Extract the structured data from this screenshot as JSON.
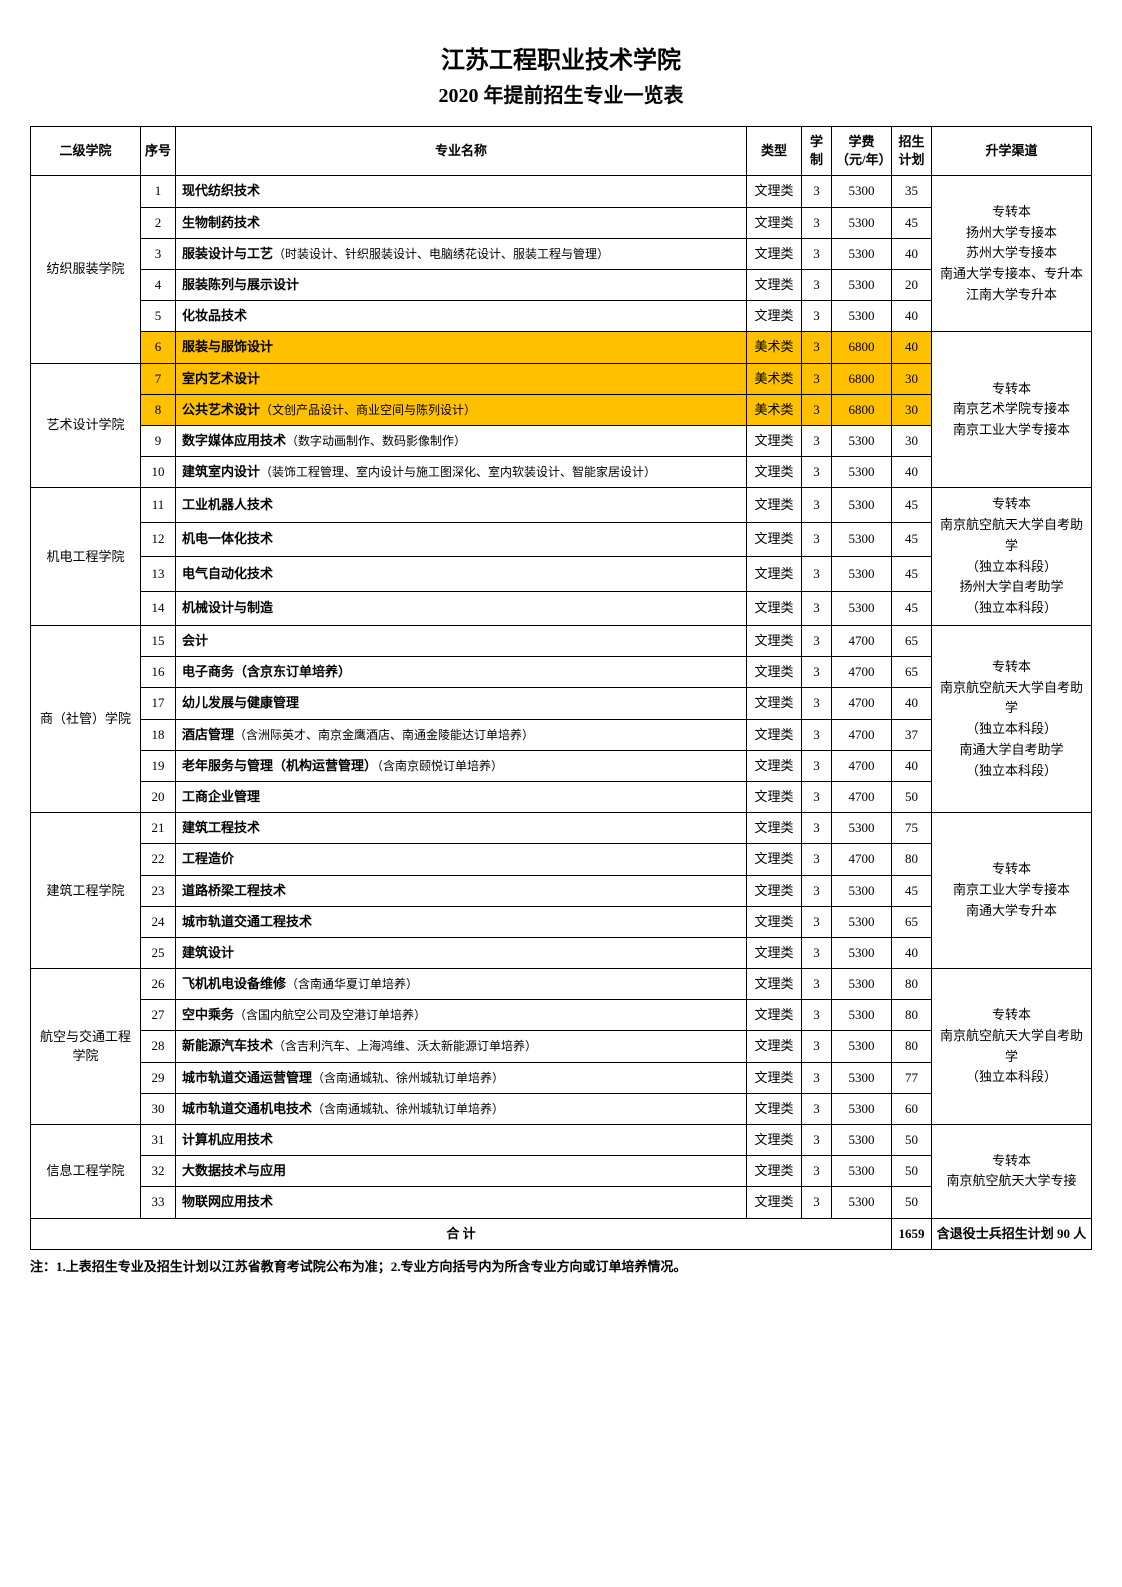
{
  "title": "江苏工程职业技术学院",
  "subtitle": "2020 年提前招生专业一览表",
  "headers": {
    "college": "二级学院",
    "seq": "序号",
    "major": "专业名称",
    "type": "类型",
    "years": "学制",
    "fee": "学费（元/年）",
    "quota": "招生计划",
    "path": "升学渠道"
  },
  "footnote": "注：1.上表招生专业及招生计划以江苏省教育考试院公布为准；2.专业方向括号内为所含专业方向或订单培养情况。",
  "total_label": "合 计",
  "total_quota": "1659",
  "total_note": "含退役士兵招生计划 90 人",
  "highlight_color": "#ffc000",
  "groups": [
    {
      "college": "纺织服装学院",
      "pathway": "专转本\n扬州大学专接本\n苏州大学专接本\n南通大学专接本、专升本\n江南大学专升本",
      "path_rows": 5,
      "path_start": 0,
      "rows": [
        {
          "seq": "1",
          "major_bold": "现代纺织技术",
          "major_light": "",
          "type": "文理类",
          "years": "3",
          "fee": "5300",
          "quota": "35",
          "hl": false
        },
        {
          "seq": "2",
          "major_bold": "生物制药技术",
          "major_light": "",
          "type": "文理类",
          "years": "3",
          "fee": "5300",
          "quota": "45",
          "hl": false
        },
        {
          "seq": "3",
          "major_bold": "服装设计与工艺",
          "major_light": "（时装设计、针织服装设计、电脑绣花设计、服装工程与管理）",
          "type": "文理类",
          "years": "3",
          "fee": "5300",
          "quota": "40",
          "hl": false
        },
        {
          "seq": "4",
          "major_bold": "服装陈列与展示设计",
          "major_light": "",
          "type": "文理类",
          "years": "3",
          "fee": "5300",
          "quota": "20",
          "hl": false
        },
        {
          "seq": "5",
          "major_bold": "化妆品技术",
          "major_light": "",
          "type": "文理类",
          "years": "3",
          "fee": "5300",
          "quota": "40",
          "hl": false
        },
        {
          "seq": "6",
          "major_bold": "服装与服饰设计",
          "major_light": "",
          "type": "美术类",
          "years": "3",
          "fee": "6800",
          "quota": "40",
          "hl": true
        }
      ]
    },
    {
      "college": "艺术设计学院",
      "pathway": "专转本\n南京艺术学院专接本\n南京工业大学专接本",
      "path_rows": 5,
      "path_start": 5,
      "rows": [
        {
          "seq": "7",
          "major_bold": "室内艺术设计",
          "major_light": "",
          "type": "美术类",
          "years": "3",
          "fee": "6800",
          "quota": "30",
          "hl": true
        },
        {
          "seq": "8",
          "major_bold": "公共艺术设计",
          "major_light": "（文创产品设计、商业空间与陈列设计）",
          "type": "美术类",
          "years": "3",
          "fee": "6800",
          "quota": "30",
          "hl": true
        },
        {
          "seq": "9",
          "major_bold": "数字媒体应用技术",
          "major_light": "（数字动画制作、数码影像制作）",
          "type": "文理类",
          "years": "3",
          "fee": "5300",
          "quota": "30",
          "hl": false
        },
        {
          "seq": "10",
          "major_bold": "建筑室内设计",
          "major_light": "（装饰工程管理、室内设计与施工图深化、室内软装设计、智能家居设计）",
          "type": "文理类",
          "years": "3",
          "fee": "5300",
          "quota": "40",
          "hl": false
        }
      ]
    },
    {
      "college": "机电工程学院",
      "pathway": "专转本\n南京航空航天大学自考助学\n（独立本科段）\n扬州大学自考助学\n（独立本科段）",
      "path_rows": 4,
      "path_start": 0,
      "rows": [
        {
          "seq": "11",
          "major_bold": "工业机器人技术",
          "major_light": "",
          "type": "文理类",
          "years": "3",
          "fee": "5300",
          "quota": "45",
          "hl": false
        },
        {
          "seq": "12",
          "major_bold": "机电一体化技术",
          "major_light": "",
          "type": "文理类",
          "years": "3",
          "fee": "5300",
          "quota": "45",
          "hl": false
        },
        {
          "seq": "13",
          "major_bold": "电气自动化技术",
          "major_light": "",
          "type": "文理类",
          "years": "3",
          "fee": "5300",
          "quota": "45",
          "hl": false
        },
        {
          "seq": "14",
          "major_bold": "机械设计与制造",
          "major_light": "",
          "type": "文理类",
          "years": "3",
          "fee": "5300",
          "quota": "45",
          "hl": false
        }
      ]
    },
    {
      "college": "商（社管）学院",
      "pathway": "专转本\n南京航空航天大学自考助学\n（独立本科段）\n南通大学自考助学\n（独立本科段）",
      "path_rows": 6,
      "path_start": 0,
      "rows": [
        {
          "seq": "15",
          "major_bold": "会计",
          "major_light": "",
          "type": "文理类",
          "years": "3",
          "fee": "4700",
          "quota": "65",
          "hl": false
        },
        {
          "seq": "16",
          "major_bold": "电子商务（含京东订单培养）",
          "major_light": "",
          "type": "文理类",
          "years": "3",
          "fee": "4700",
          "quota": "65",
          "hl": false
        },
        {
          "seq": "17",
          "major_bold": "幼儿发展与健康管理",
          "major_light": "",
          "type": "文理类",
          "years": "3",
          "fee": "4700",
          "quota": "40",
          "hl": false
        },
        {
          "seq": "18",
          "major_bold": "酒店管理",
          "major_light": "（含洲际英才、南京金鹰酒店、南通金陵能达订单培养）",
          "type": "文理类",
          "years": "3",
          "fee": "4700",
          "quota": "37",
          "hl": false
        },
        {
          "seq": "19",
          "major_bold": "老年服务与管理（机构运营管理）",
          "major_light": "（含南京颐悦订单培养）",
          "type": "文理类",
          "years": "3",
          "fee": "4700",
          "quota": "40",
          "hl": false
        },
        {
          "seq": "20",
          "major_bold": "工商企业管理",
          "major_light": "",
          "type": "文理类",
          "years": "3",
          "fee": "4700",
          "quota": "50",
          "hl": false
        }
      ]
    },
    {
      "college": "建筑工程学院",
      "pathway": "专转本\n南京工业大学专接本\n南通大学专升本",
      "path_rows": 5,
      "path_start": 0,
      "rows": [
        {
          "seq": "21",
          "major_bold": "建筑工程技术",
          "major_light": "",
          "type": "文理类",
          "years": "3",
          "fee": "5300",
          "quota": "75",
          "hl": false
        },
        {
          "seq": "22",
          "major_bold": "工程造价",
          "major_light": "",
          "type": "文理类",
          "years": "3",
          "fee": "4700",
          "quota": "80",
          "hl": false
        },
        {
          "seq": "23",
          "major_bold": "道路桥梁工程技术",
          "major_light": "",
          "type": "文理类",
          "years": "3",
          "fee": "5300",
          "quota": "45",
          "hl": false
        },
        {
          "seq": "24",
          "major_bold": "城市轨道交通工程技术",
          "major_light": "",
          "type": "文理类",
          "years": "3",
          "fee": "5300",
          "quota": "65",
          "hl": false
        },
        {
          "seq": "25",
          "major_bold": "建筑设计",
          "major_light": "",
          "type": "文理类",
          "years": "3",
          "fee": "5300",
          "quota": "40",
          "hl": false
        }
      ]
    },
    {
      "college": "航空与交通工程学院",
      "pathway": "专转本\n南京航空航天大学自考助学\n（独立本科段）",
      "path_rows": 5,
      "path_start": 0,
      "rows": [
        {
          "seq": "26",
          "major_bold": "飞机机电设备维修",
          "major_light": "（含南通华夏订单培养）",
          "type": "文理类",
          "years": "3",
          "fee": "5300",
          "quota": "80",
          "hl": false
        },
        {
          "seq": "27",
          "major_bold": "空中乘务",
          "major_light": "（含国内航空公司及空港订单培养）",
          "type": "文理类",
          "years": "3",
          "fee": "5300",
          "quota": "80",
          "hl": false
        },
        {
          "seq": "28",
          "major_bold": "新能源汽车技术",
          "major_light": "（含吉利汽车、上海鸿维、沃太新能源订单培养）",
          "type": "文理类",
          "years": "3",
          "fee": "5300",
          "quota": "80",
          "hl": false
        },
        {
          "seq": "29",
          "major_bold": "城市轨道交通运营管理",
          "major_light": "（含南通城轨、徐州城轨订单培养）",
          "type": "文理类",
          "years": "3",
          "fee": "5300",
          "quota": "77",
          "hl": false
        },
        {
          "seq": "30",
          "major_bold": "城市轨道交通机电技术",
          "major_light": "（含南通城轨、徐州城轨订单培养）",
          "type": "文理类",
          "years": "3",
          "fee": "5300",
          "quota": "60",
          "hl": false
        }
      ]
    },
    {
      "college": "信息工程学院",
      "pathway": "专转本\n南京航空航天大学专接",
      "path_rows": 3,
      "path_start": 0,
      "rows": [
        {
          "seq": "31",
          "major_bold": "计算机应用技术",
          "major_light": "",
          "type": "文理类",
          "years": "3",
          "fee": "5300",
          "quota": "50",
          "hl": false
        },
        {
          "seq": "32",
          "major_bold": "大数据技术与应用",
          "major_light": "",
          "type": "文理类",
          "years": "3",
          "fee": "5300",
          "quota": "50",
          "hl": false
        },
        {
          "seq": "33",
          "major_bold": "物联网应用技术",
          "major_light": "",
          "type": "文理类",
          "years": "3",
          "fee": "5300",
          "quota": "50",
          "hl": false
        }
      ]
    }
  ]
}
